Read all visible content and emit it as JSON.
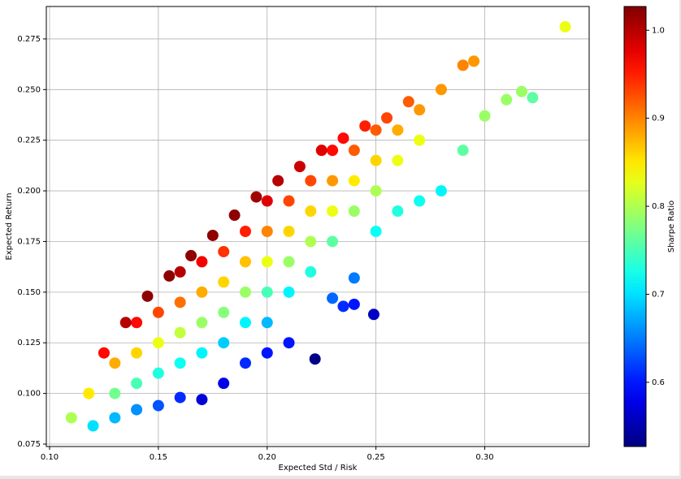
{
  "chart_data": {
    "type": "scatter",
    "x_label": "Expected Std / Risk",
    "y_label": "Expected Return",
    "x": [
      0.13,
      0.13,
      0.14,
      0.14,
      0.14,
      0.15,
      0.15,
      0.15,
      0.16,
      0.16,
      0.16,
      0.16,
      0.17,
      0.17,
      0.17,
      0.17,
      0.18,
      0.18,
      0.18,
      0.18,
      0.19,
      0.19,
      0.19,
      0.19,
      0.2,
      0.2,
      0.2,
      0.2,
      0.2,
      0.21,
      0.21,
      0.21,
      0.21,
      0.22,
      0.22,
      0.22,
      0.22,
      0.23,
      0.23,
      0.23,
      0.23,
      0.24,
      0.24,
      0.24,
      0.25,
      0.25,
      0.25,
      0.26,
      0.26,
      0.27,
      0.27,
      0.118,
      0.125,
      0.135,
      0.145,
      0.155,
      0.165,
      0.175,
      0.185,
      0.195,
      0.205,
      0.215,
      0.225,
      0.235,
      0.245,
      0.255,
      0.265,
      0.28,
      0.29,
      0.295,
      0.11,
      0.12,
      0.13,
      0.14,
      0.15,
      0.16,
      0.17,
      0.18,
      0.19,
      0.2,
      0.21,
      0.222,
      0.235,
      0.24,
      0.249,
      0.23,
      0.24,
      0.25,
      0.26,
      0.27,
      0.28,
      0.29,
      0.3,
      0.31,
      0.317,
      0.322,
      0.337
    ],
    "y": [
      0.1,
      0.115,
      0.105,
      0.12,
      0.135,
      0.11,
      0.125,
      0.14,
      0.115,
      0.13,
      0.145,
      0.16,
      0.12,
      0.135,
      0.15,
      0.165,
      0.125,
      0.14,
      0.155,
      0.17,
      0.135,
      0.15,
      0.165,
      0.18,
      0.135,
      0.15,
      0.165,
      0.18,
      0.195,
      0.15,
      0.165,
      0.18,
      0.195,
      0.16,
      0.175,
      0.19,
      0.205,
      0.175,
      0.19,
      0.205,
      0.22,
      0.19,
      0.205,
      0.22,
      0.2,
      0.215,
      0.23,
      0.215,
      0.23,
      0.225,
      0.24,
      0.1,
      0.12,
      0.135,
      0.148,
      0.158,
      0.168,
      0.178,
      0.188,
      0.197,
      0.205,
      0.212,
      0.22,
      0.226,
      0.232,
      0.236,
      0.244,
      0.25,
      0.262,
      0.264,
      0.088,
      0.084,
      0.088,
      0.092,
      0.094,
      0.098,
      0.097,
      0.105,
      0.115,
      0.12,
      0.125,
      0.117,
      0.143,
      0.144,
      0.139,
      0.147,
      0.157,
      0.18,
      0.19,
      0.195,
      0.2,
      0.22,
      0.237,
      0.245,
      0.249,
      0.246,
      0.281
    ],
    "c": [
      0.77,
      0.88,
      0.75,
      0.86,
      0.96,
      0.73,
      0.83,
      0.93,
      0.72,
      0.81,
      0.91,
      1.0,
      0.71,
      0.79,
      0.88,
      0.97,
      0.69,
      0.78,
      0.86,
      0.94,
      0.71,
      0.79,
      0.87,
      0.95,
      0.68,
      0.75,
      0.83,
      0.9,
      0.98,
      0.71,
      0.79,
      0.86,
      0.93,
      0.73,
      0.8,
      0.86,
      0.93,
      0.76,
      0.83,
      0.89,
      0.96,
      0.79,
      0.85,
      0.92,
      0.8,
      0.86,
      0.92,
      0.83,
      0.88,
      0.83,
      0.89,
      0.85,
      0.96,
      1.0,
      1.02,
      1.02,
      1.02,
      1.02,
      1.02,
      1.01,
      1.0,
      0.99,
      0.98,
      0.96,
      0.95,
      0.93,
      0.92,
      0.89,
      0.9,
      0.89,
      0.8,
      0.7,
      0.68,
      0.66,
      0.63,
      0.61,
      0.57,
      0.58,
      0.61,
      0.6,
      0.6,
      0.53,
      0.61,
      0.6,
      0.56,
      0.64,
      0.65,
      0.72,
      0.73,
      0.72,
      0.71,
      0.76,
      0.79,
      0.79,
      0.79,
      0.76,
      0.83
    ],
    "colormap": "jet",
    "clim": [
      0.527,
      1.027
    ],
    "colorbar_label": "Sharpe Ratio",
    "colorbar_ticks": [
      0.6,
      0.7,
      0.8,
      0.9,
      {
        "value": 1.0,
        "label": "1.0"
      }
    ],
    "xlim": [
      0.0985,
      0.348
    ],
    "ylim": [
      0.0738,
      0.291
    ],
    "xticks": [
      {
        "value": 0.1,
        "label": "0.10"
      },
      0.15,
      {
        "value": 0.2,
        "label": "0.20"
      },
      0.25,
      {
        "value": 0.3,
        "label": "0.30"
      }
    ],
    "yticks": [
      0.075,
      {
        "value": 0.1,
        "label": "0.100"
      },
      0.125,
      {
        "value": 0.15,
        "label": "0.150"
      },
      0.175,
      {
        "value": 0.2,
        "label": "0.200"
      },
      0.225,
      {
        "value": 0.25,
        "label": "0.250"
      },
      0.275
    ],
    "grid": true
  }
}
